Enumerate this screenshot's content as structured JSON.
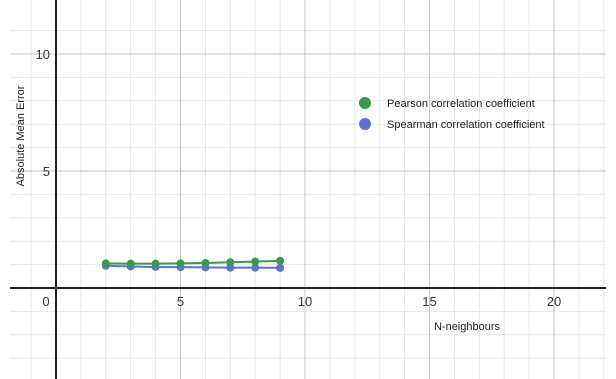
{
  "chart_data": {
    "type": "line",
    "title": "",
    "xlabel": "N-neighbours",
    "ylabel": "Absolute Mean Error",
    "xlim": [
      -1.8,
      22.2
    ],
    "ylim": [
      -3.7,
      11.8
    ],
    "x_ticks": [
      0,
      5,
      10,
      15,
      20
    ],
    "x_tick_labels": [
      "0",
      "5",
      "10",
      "15",
      "20"
    ],
    "y_ticks": [
      5,
      10
    ],
    "y_tick_labels": [
      "5",
      "10"
    ],
    "grid": true,
    "minor_grid": true,
    "legend_position": "upper-right",
    "x": [
      2,
      3,
      4,
      5,
      6,
      7,
      8,
      9
    ],
    "series": [
      {
        "name": "Pearson correlation coefficient",
        "color": "#3a9a4a",
        "values": [
          1.05,
          1.04,
          1.04,
          1.05,
          1.07,
          1.1,
          1.13,
          1.16
        ]
      },
      {
        "name": "Spearman correlation coefficient",
        "color": "#5b72d4",
        "values": [
          0.95,
          0.92,
          0.9,
          0.89,
          0.88,
          0.87,
          0.87,
          0.86
        ]
      }
    ],
    "colors": {
      "grid_major": "#c4c4c4",
      "grid_minor": "#e6e6e6",
      "axis": "#222222",
      "background": "#ffffff"
    }
  }
}
